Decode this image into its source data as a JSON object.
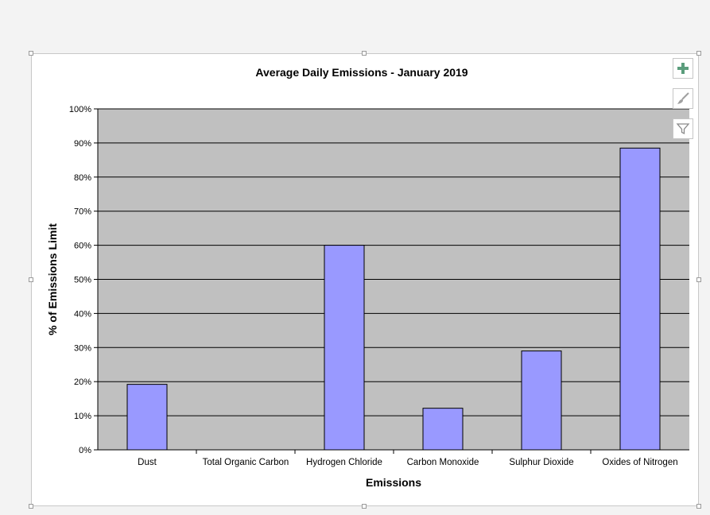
{
  "chart_data": {
    "type": "bar",
    "title": "Average Daily Emissions - January 2019",
    "xlabel": "Emissions",
    "ylabel": "% of Emissions Limit",
    "categories": [
      "Dust",
      "Total Organic Carbon",
      "Hydrogen Chloride",
      "Carbon Monoxide",
      "Sulphur Dioxide",
      "Oxides of Nitrogen"
    ],
    "values": [
      19.2,
      0,
      60,
      12.2,
      29,
      88.5
    ],
    "ylim": [
      0,
      100
    ],
    "yticks": [
      "0%",
      "10%",
      "20%",
      "30%",
      "40%",
      "50%",
      "60%",
      "70%",
      "80%",
      "90%",
      "100%"
    ],
    "grid": true,
    "legend": "none",
    "colors": {
      "bar_fill": "#9999ff",
      "bar_stroke": "#000000",
      "plot_background": "#c0c0c0"
    }
  },
  "side_buttons": {
    "add_elements_icon": "plus-icon",
    "styles_icon": "brush-icon",
    "filters_icon": "filter-icon"
  }
}
